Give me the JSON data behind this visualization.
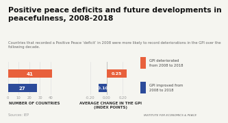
{
  "title": "Positive peace deficits and future developments in\npeacefulness, 2008-2018",
  "subtitle": "Countries that recorded a Positive Peace ‘deficit’ in 2008 were more likely to record deteriorations in the GPI over the\nfollowing decade.",
  "left_chart": {
    "values": [
      41,
      27
    ],
    "colors": [
      "#E8603C",
      "#2C4B9A"
    ],
    "xlabel": "NUMBER OF COUNTRIES",
    "xlim": [
      0,
      50
    ],
    "xticks": [
      0,
      10,
      20,
      30,
      40
    ]
  },
  "right_chart": {
    "values": [
      0.25,
      -0.1
    ],
    "colors": [
      "#E8603C",
      "#2C4B9A"
    ],
    "xlabel": "AVERAGE CHANGE IN THE GPI\n(INDEX POINTS)",
    "xlim": [
      -0.28,
      0.38
    ],
    "xticks": [
      -0.2,
      0.0,
      0.2
    ]
  },
  "legend": {
    "labels": [
      "GPI deteriorated\nfrom 2008 to 2018",
      "GPI improved from\n2008 to 2018"
    ],
    "colors": [
      "#E8603C",
      "#2C4B9A"
    ]
  },
  "source": "Sources: IEP",
  "footer": "INSTITUTE FOR ECONOMICS & PEACE",
  "bg_color": "#F5F5F0",
  "bar_label_color": "#FFFFFF",
  "axis_label_fontsize": 4.0,
  "tick_fontsize": 3.8,
  "title_fontsize": 7.8,
  "subtitle_fontsize": 3.8,
  "legend_fontsize": 3.8
}
